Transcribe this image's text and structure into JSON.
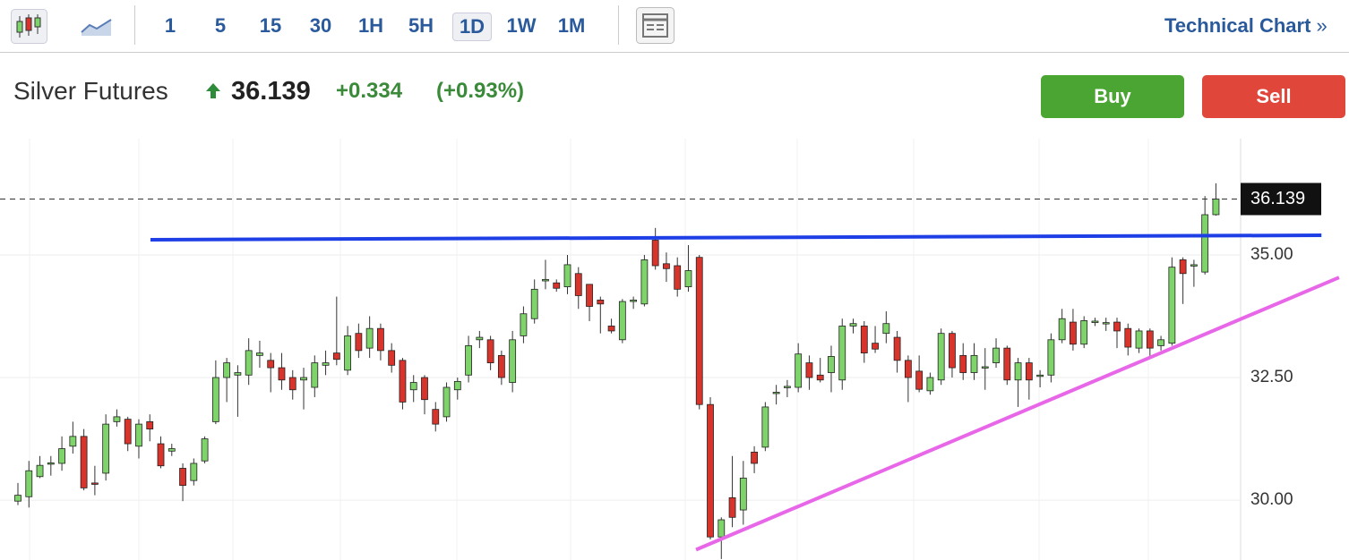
{
  "toolbar": {
    "intervals": [
      "1",
      "5",
      "15",
      "30",
      "1H",
      "5H",
      "1D",
      "1W",
      "1M"
    ],
    "selected": "1D",
    "link": "Technical Chart",
    "link_arrow": "»"
  },
  "header": {
    "name": "Silver Futures",
    "price": "36.139",
    "change": "+0.334",
    "change_pct": "(+0.93%)",
    "buy": "Buy",
    "sell": "Sell"
  },
  "chart_data": {
    "type": "candlestick",
    "categories": [
      null,
      null,
      null,
      null,
      null,
      null,
      null,
      null,
      null,
      null,
      null,
      null,
      null,
      null,
      null,
      null,
      null,
      null,
      null,
      null,
      null,
      null,
      null,
      null,
      null,
      null,
      null,
      null,
      null,
      null,
      null,
      null,
      null,
      null,
      null,
      null,
      null,
      null,
      null,
      null,
      null,
      null,
      null,
      null,
      null,
      null,
      null,
      null,
      null,
      null,
      null,
      null,
      null,
      null,
      null,
      null,
      null,
      null,
      null,
      null,
      null,
      null,
      null,
      null,
      null,
      null,
      null,
      null,
      null,
      null,
      null,
      null,
      null,
      null,
      null,
      null,
      null,
      null,
      null,
      null,
      null,
      null,
      null,
      null,
      null,
      null,
      null,
      null,
      null,
      null,
      null,
      null,
      null,
      null,
      null,
      null,
      null,
      null,
      null,
      null,
      null,
      null,
      null,
      null,
      null,
      null,
      null,
      null,
      null,
      null
    ],
    "open": [
      29.98,
      30.07,
      30.48,
      30.75,
      30.75,
      31.1,
      31.3,
      30.35,
      30.55,
      31.6,
      31.65,
      31.1,
      31.6,
      31.15,
      31.0,
      30.65,
      30.4,
      30.8,
      31.6,
      32.5,
      32.55,
      32.55,
      32.95,
      32.85,
      32.7,
      32.5,
      32.45,
      32.3,
      32.75,
      33.0,
      32.65,
      33.4,
      33.1,
      33.5,
      33.05,
      32.85,
      32.25,
      32.5,
      31.85,
      31.7,
      32.25,
      32.55,
      33.27,
      33.27,
      32.95,
      32.4,
      33.35,
      33.7,
      34.47,
      34.43,
      34.35,
      34.62,
      34.4,
      34.08,
      33.55,
      33.27,
      34.05,
      34.0,
      35.3,
      34.82,
      34.78,
      34.35,
      34.95,
      31.95,
      29.25,
      30.05,
      29.8,
      30.98,
      31.08,
      32.18,
      32.3,
      32.3,
      32.8,
      32.55,
      32.6,
      32.45,
      33.55,
      33.55,
      33.2,
      33.4,
      33.32,
      32.85,
      32.63,
      32.23,
      32.45,
      33.4,
      32.95,
      32.6,
      32.7,
      32.8,
      33.1,
      32.45,
      32.8,
      32.53,
      32.55,
      33.27,
      33.63,
      33.18,
      33.62,
      33.6,
      33.63,
      33.5,
      33.1,
      33.45,
      33.15,
      33.2,
      34.9,
      34.78,
      34.65,
      35.82
    ],
    "high": [
      30.35,
      30.8,
      30.9,
      30.9,
      31.3,
      31.6,
      31.45,
      30.7,
      31.75,
      31.85,
      31.7,
      31.65,
      31.75,
      31.3,
      31.15,
      30.75,
      30.85,
      31.3,
      32.85,
      32.9,
      32.75,
      33.3,
      33.25,
      33.0,
      33.0,
      32.65,
      32.7,
      32.95,
      33.05,
      34.15,
      33.55,
      33.6,
      33.75,
      33.6,
      33.2,
      32.9,
      32.55,
      32.55,
      32.0,
      32.4,
      32.5,
      33.35,
      33.45,
      33.35,
      33.05,
      33.45,
      33.95,
      34.5,
      34.9,
      34.5,
      35.0,
      34.75,
      34.4,
      34.15,
      33.7,
      34.1,
      34.15,
      35.0,
      35.55,
      35.05,
      34.95,
      35.2,
      35.0,
      32.1,
      29.65,
      30.9,
      30.8,
      31.1,
      32.0,
      32.35,
      32.45,
      33.2,
      32.95,
      32.9,
      33.15,
      33.7,
      33.7,
      33.65,
      33.55,
      33.85,
      33.45,
      32.95,
      32.95,
      32.6,
      33.5,
      33.45,
      33.2,
      33.2,
      33.1,
      33.3,
      33.15,
      32.9,
      32.9,
      32.65,
      33.4,
      33.9,
      33.9,
      33.75,
      33.72,
      33.72,
      33.72,
      33.6,
      33.5,
      33.5,
      33.35,
      34.95,
      34.95,
      34.9,
      36.2,
      36.46
    ],
    "low": [
      29.9,
      29.85,
      30.45,
      30.5,
      30.6,
      30.95,
      30.2,
      30.1,
      30.4,
      31.5,
      31.0,
      30.85,
      31.2,
      30.65,
      30.9,
      29.98,
      30.3,
      30.75,
      31.55,
      32.0,
      31.7,
      32.35,
      32.7,
      32.2,
      32.25,
      32.05,
      31.85,
      32.1,
      32.55,
      32.75,
      32.55,
      32.9,
      32.9,
      32.85,
      32.6,
      31.85,
      32.0,
      31.75,
      31.4,
      31.6,
      32.05,
      32.4,
      33.1,
      32.65,
      32.35,
      32.2,
      33.2,
      33.6,
      34.3,
      34.25,
      34.2,
      33.9,
      33.65,
      33.4,
      33.4,
      33.2,
      33.9,
      33.95,
      34.7,
      34.45,
      34.15,
      34.25,
      31.85,
      29.2,
      28.8,
      29.45,
      29.5,
      30.55,
      31.0,
      31.95,
      32.1,
      32.2,
      32.25,
      32.4,
      32.2,
      32.25,
      33.4,
      32.8,
      33.0,
      33.2,
      32.6,
      32.0,
      32.2,
      32.15,
      32.35,
      32.5,
      32.45,
      32.45,
      32.25,
      32.7,
      32.35,
      31.9,
      32.05,
      32.3,
      32.4,
      33.2,
      33.05,
      33.1,
      33.55,
      33.45,
      33.1,
      32.95,
      33.0,
      32.9,
      33.05,
      33.15,
      34.0,
      34.35,
      34.6,
      35.8
    ],
    "close": [
      30.1,
      30.6,
      30.71,
      30.76,
      31.05,
      31.3,
      30.25,
      30.33,
      31.55,
      31.7,
      31.15,
      31.55,
      31.45,
      30.7,
      31.05,
      30.3,
      30.75,
      31.25,
      32.5,
      32.8,
      32.6,
      33.05,
      33.0,
      32.7,
      32.45,
      32.25,
      32.5,
      32.8,
      32.8,
      32.87,
      33.35,
      33.05,
      33.5,
      33.05,
      32.75,
      32.0,
      32.4,
      32.05,
      31.55,
      32.3,
      32.42,
      33.15,
      33.32,
      32.8,
      32.5,
      33.27,
      33.8,
      34.3,
      34.5,
      34.32,
      34.8,
      34.17,
      33.95,
      34.0,
      33.45,
      34.05,
      34.08,
      34.9,
      34.78,
      34.72,
      34.3,
      34.68,
      31.95,
      29.25,
      29.6,
      29.65,
      30.45,
      30.75,
      31.9,
      32.2,
      32.32,
      32.98,
      32.5,
      32.45,
      32.93,
      33.55,
      33.6,
      33.0,
      33.08,
      33.6,
      32.85,
      32.5,
      32.26,
      32.5,
      33.4,
      32.7,
      32.6,
      32.95,
      32.72,
      33.1,
      32.45,
      32.8,
      32.45,
      32.55,
      33.27,
      33.7,
      33.18,
      33.66,
      33.65,
      33.62,
      33.45,
      33.12,
      33.45,
      33.1,
      33.27,
      34.75,
      34.62,
      34.8,
      35.82,
      36.139
    ],
    "up_color": "#7fd36b",
    "down_color": "#d9342b",
    "last_price": 36.139,
    "trendlines": [
      {
        "color": "#1f3fe6",
        "x": [
          12.06,
          118.6
        ],
        "y": [
          35.31,
          35.4
        ]
      },
      {
        "color": "#e866e8",
        "x": [
          61.7,
          120.2
        ],
        "y": [
          28.99,
          34.54
        ]
      }
    ],
    "ylim": [
      28.78,
      37.37
    ],
    "yticks": [
      {
        "value": 30,
        "label": "30.00"
      },
      {
        "value": 32.5,
        "label": "32.50"
      },
      {
        "value": 35,
        "label": "35.00"
      }
    ],
    "grid": true
  }
}
